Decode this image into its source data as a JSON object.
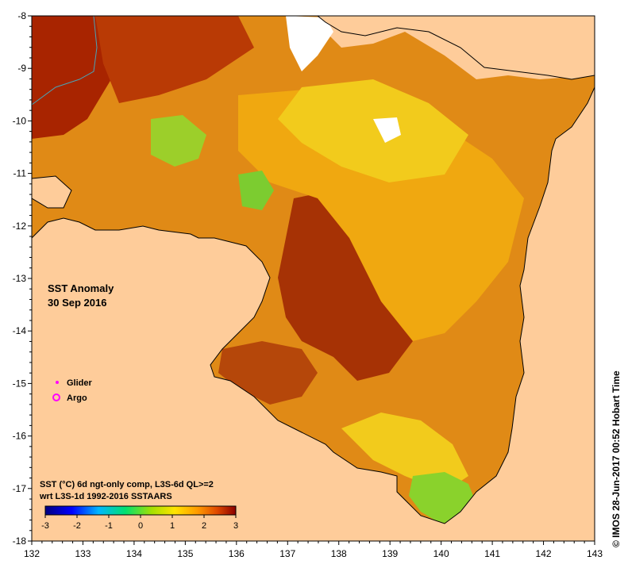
{
  "title": {
    "line1": "SST Anomaly",
    "line2": "30 Sep 2016"
  },
  "legend": {
    "glider": "Glider",
    "argo": "Argo",
    "glider_color": "#ff00ff",
    "argo_color": "#ff00ff"
  },
  "product": {
    "line1": "SST (°C) 6d ngt-only comp, L3S-6d QL>=2",
    "line2": "wrt L3S-1d 1992-2016 SSTAARS"
  },
  "colorbar": {
    "ticks": [
      "-3",
      "-2",
      "-1",
      "0",
      "1",
      "2",
      "3"
    ],
    "min": -3,
    "max": 3
  },
  "credit": "© IMOS 28-Jun-2017 00:52 Hobart Time",
  "axes": {
    "lon_min": 132,
    "lon_max": 143,
    "lat_min": -18,
    "lat_max": -8,
    "lon_ticks": [
      "132",
      "133",
      "134",
      "135",
      "136",
      "137",
      "138",
      "139",
      "140",
      "141",
      "142",
      "143"
    ],
    "lat_ticks": [
      "-8",
      "-9",
      "-10",
      "-11",
      "-12",
      "-13",
      "-14",
      "-15",
      "-16",
      "-17",
      "-18"
    ]
  },
  "colors": {
    "land": "#fecc9a",
    "ocean_dark": "#a52a00",
    "ocean_mid": "#d66a10",
    "ocean_warm": "#f3a20c",
    "ocean_yellow": "#f2d21a",
    "ocean_green": "#7ed42a",
    "coast": "#000000"
  }
}
